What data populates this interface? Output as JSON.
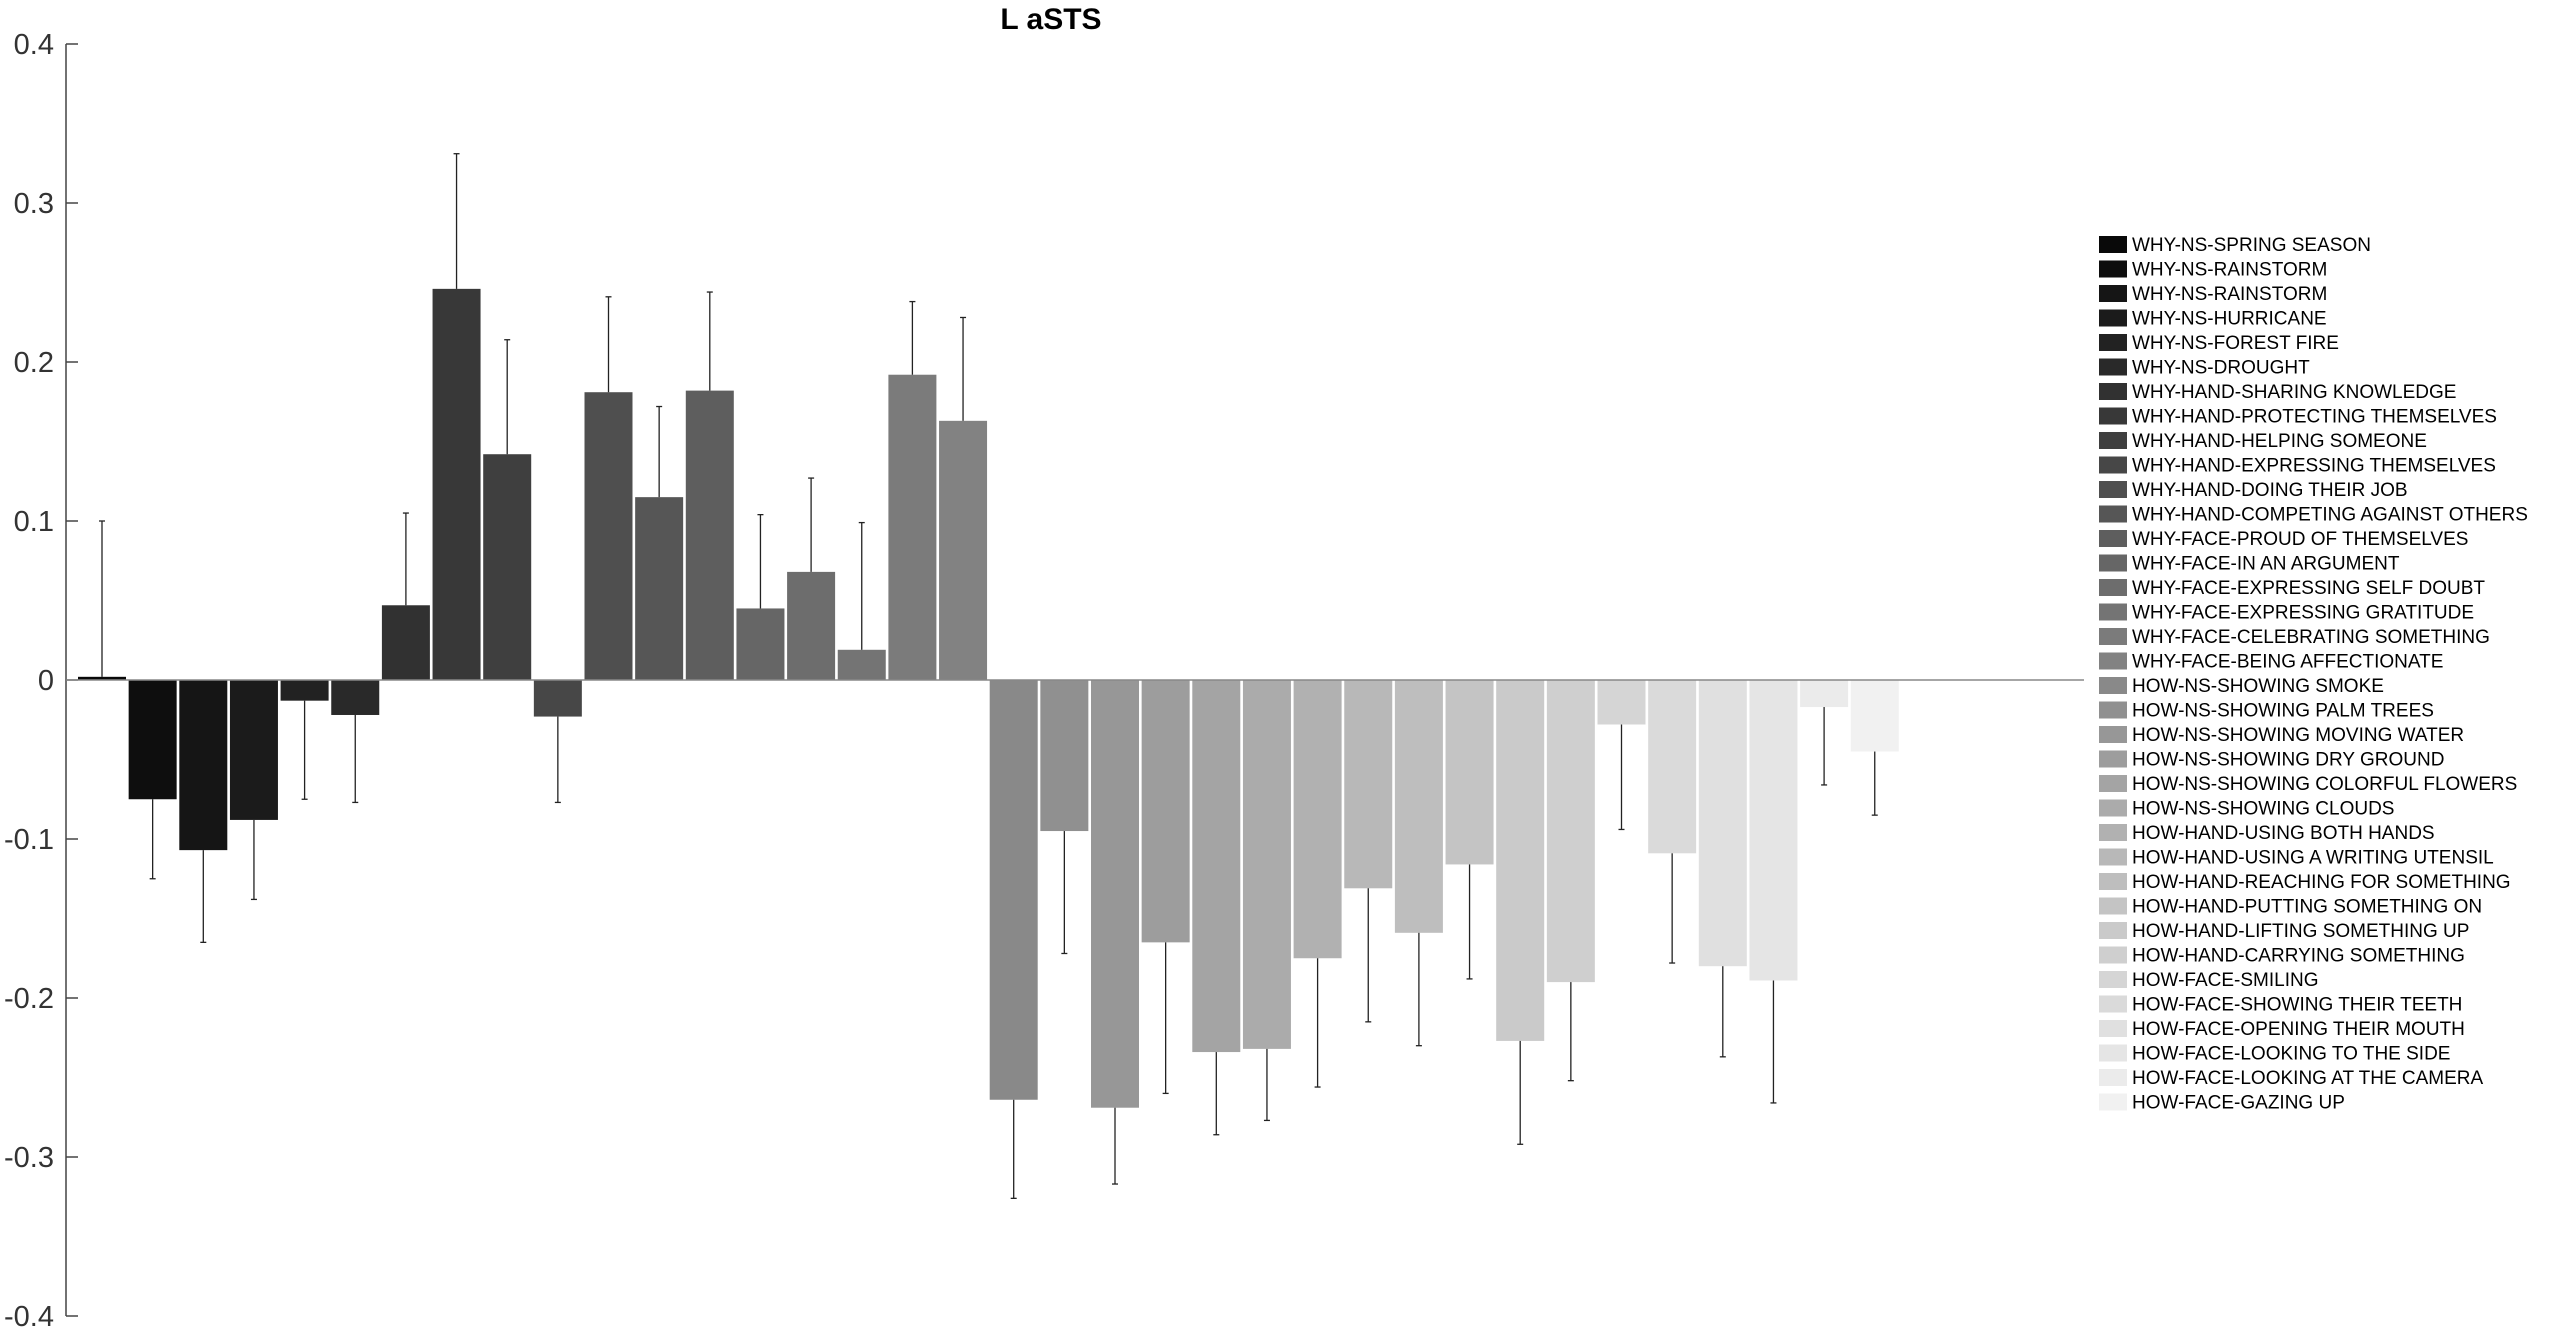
{
  "chart_data": {
    "type": "bar",
    "title": "L aSTS",
    "xlabel": "",
    "ylabel": "",
    "ylim": [
      -0.4,
      0.4
    ],
    "yticks": [
      -0.4,
      -0.3,
      -0.2,
      -0.1,
      0,
      0.1,
      0.2,
      0.3,
      0.4
    ],
    "ytick_labels": [
      "-0.4",
      "-0.3",
      "-0.2",
      "-0.1",
      "0",
      "0.1",
      "0.2",
      "0.3",
      "0.4"
    ],
    "legend_position": "right",
    "grid": false,
    "error_bars": "one-sided, extending away from zero",
    "categories": [
      "WHY-NS-SPRING SEASON",
      "WHY-NS-RAINSTORM",
      "WHY-NS-RAINSTORM",
      "WHY-NS-HURRICANE",
      "WHY-NS-FOREST FIRE",
      "WHY-NS-DROUGHT",
      "WHY-HAND-SHARING KNOWLEDGE",
      "WHY-HAND-PROTECTING THEMSELVES",
      "WHY-HAND-HELPING SOMEONE",
      "WHY-HAND-EXPRESSING THEMSELVES",
      "WHY-HAND-DOING THEIR JOB",
      "WHY-HAND-COMPETING AGAINST OTHERS",
      "WHY-FACE-PROUD OF THEMSELVES",
      "WHY-FACE-IN AN ARGUMENT",
      "WHY-FACE-EXPRESSING SELF DOUBT",
      "WHY-FACE-EXPRESSING GRATITUDE",
      "WHY-FACE-CELEBRATING SOMETHING",
      "WHY-FACE-BEING AFFECTIONATE",
      "HOW-NS-SHOWING SMOKE",
      "HOW-NS-SHOWING PALM TREES",
      "HOW-NS-SHOWING MOVING WATER",
      "HOW-NS-SHOWING DRY GROUND",
      "HOW-NS-SHOWING COLORFUL FLOWERS",
      "HOW-NS-SHOWING CLOUDS",
      "HOW-HAND-USING BOTH HANDS",
      "HOW-HAND-USING A WRITING UTENSIL",
      "HOW-HAND-REACHING FOR SOMETHING",
      "HOW-HAND-PUTTING SOMETHING ON",
      "HOW-HAND-LIFTING SOMETHING UP",
      "HOW-HAND-CARRYING SOMETHING",
      "HOW-FACE-SMILING",
      "HOW-FACE-SHOWING THEIR TEETH",
      "HOW-FACE-OPENING THEIR MOUTH",
      "HOW-FACE-LOOKING TO THE SIDE",
      "HOW-FACE-LOOKING AT THE CAMERA",
      "HOW-FACE-GAZING UP"
    ],
    "values": [
      0.002,
      -0.075,
      -0.107,
      -0.088,
      -0.013,
      -0.022,
      0.047,
      0.246,
      0.142,
      -0.023,
      0.181,
      0.115,
      0.182,
      0.045,
      0.068,
      0.019,
      0.192,
      0.163,
      -0.264,
      -0.095,
      -0.269,
      -0.165,
      -0.234,
      -0.232,
      -0.175,
      -0.131,
      -0.159,
      -0.116,
      -0.227,
      -0.19,
      -0.028,
      -0.109,
      -0.18,
      -0.189,
      -0.017,
      -0.045
    ],
    "errors": [
      0.098,
      0.05,
      0.058,
      0.05,
      0.062,
      0.055,
      0.058,
      0.085,
      0.072,
      0.054,
      0.06,
      0.057,
      0.062,
      0.059,
      0.059,
      0.08,
      0.046,
      0.065,
      0.062,
      0.077,
      0.048,
      0.095,
      0.052,
      0.045,
      0.081,
      0.084,
      0.071,
      0.072,
      0.065,
      0.062,
      0.066,
      0.069,
      0.057,
      0.077,
      0.049,
      0.04
    ],
    "colors": [
      "#090909",
      "#0e0e0e",
      "#151515",
      "#1b1b1b",
      "#222222",
      "#292929",
      "#313131",
      "#383838",
      "#3f3f3f",
      "#474747",
      "#4f4f4f",
      "#565656",
      "#5e5e5e",
      "#666666",
      "#6d6d6d",
      "#747474",
      "#7b7b7b",
      "#828282",
      "#898989",
      "#909090",
      "#979797",
      "#9d9d9d",
      "#a4a4a4",
      "#ababab",
      "#b1b1b1",
      "#b8b8b8",
      "#bebebe",
      "#c4c4c4",
      "#cacaca",
      "#cfcfcf",
      "#d5d5d5",
      "#dadada",
      "#e0e0e0",
      "#e5e5e5",
      "#ebebeb",
      "#f1f1f1"
    ]
  }
}
